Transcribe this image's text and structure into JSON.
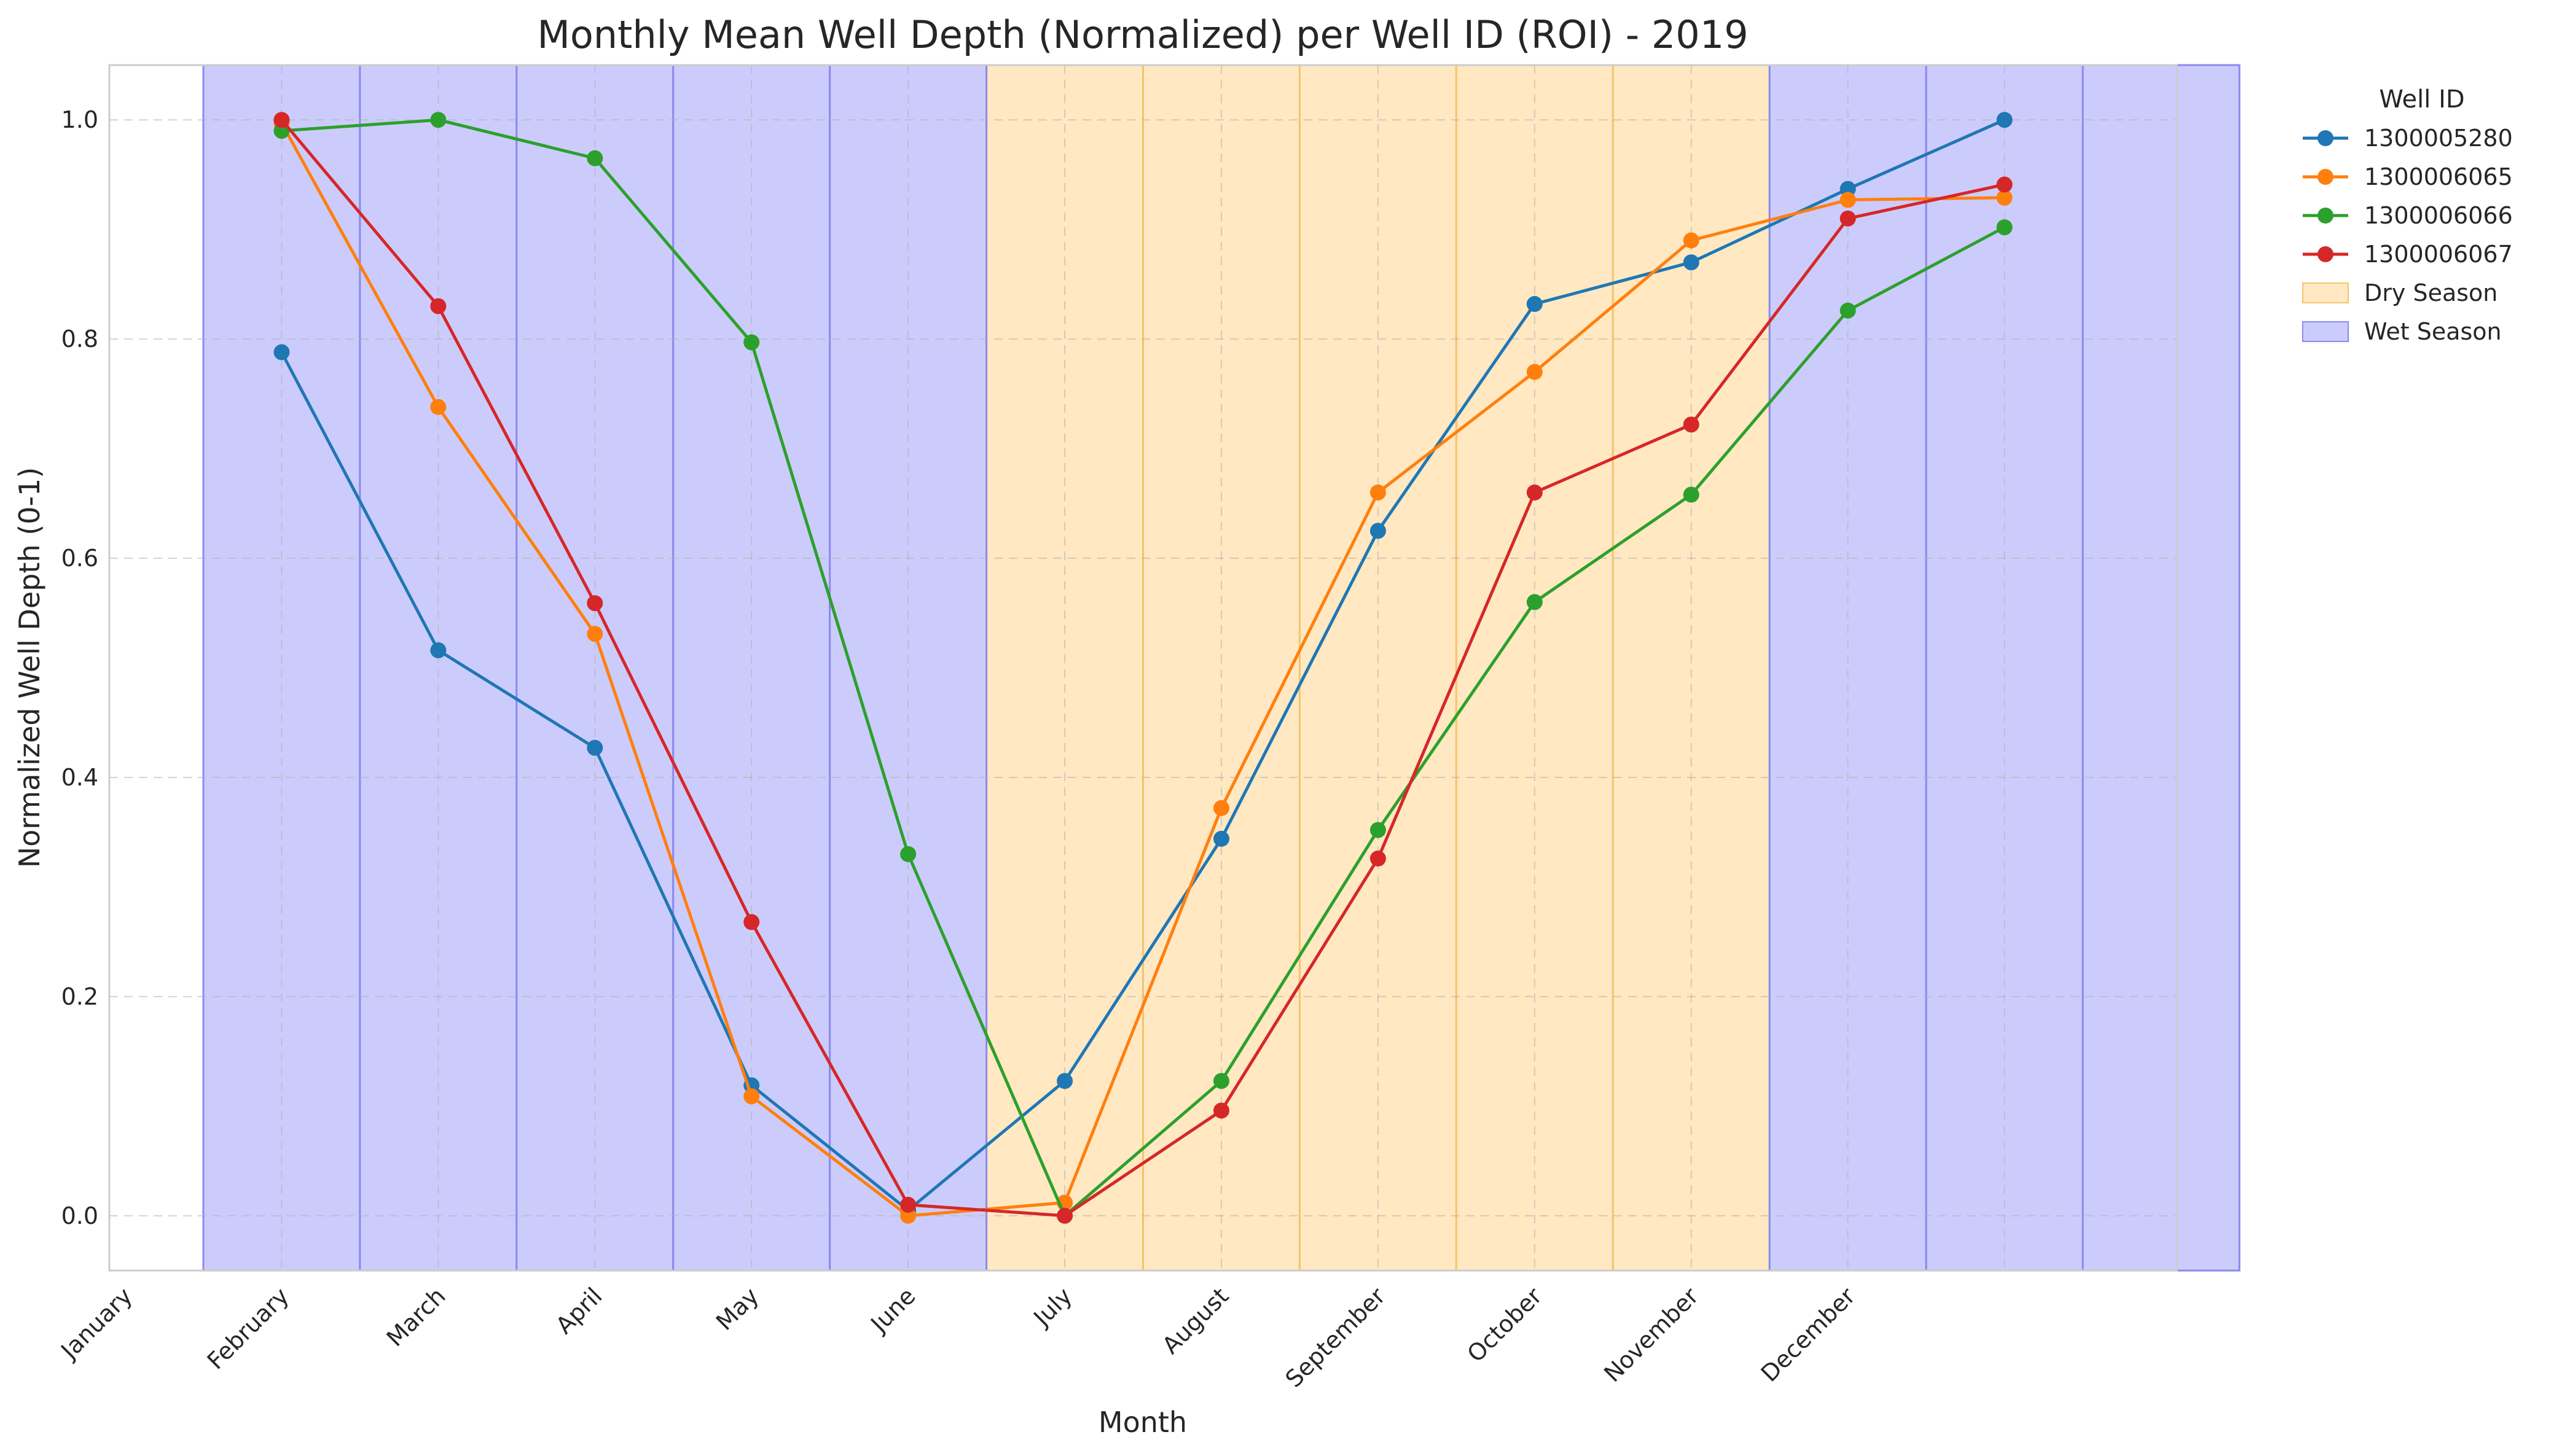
{
  "chart_data": {
    "type": "line",
    "title": "Monthly Mean Well Depth (Normalized) per Well ID (ROI) - 2019",
    "xlabel": "Month",
    "ylabel": "Normalized Well Depth (0-1)",
    "x_tick_labels": [
      "January",
      "February",
      "March",
      "April",
      "May",
      "June",
      "July",
      "August",
      "September",
      "October",
      "November",
      "December"
    ],
    "x_positions": [
      2,
      3,
      4,
      5,
      6,
      7,
      8,
      9,
      10,
      11,
      12,
      13
    ],
    "xlim": [
      0.9,
      14.1
    ],
    "y_ticks": [
      0.0,
      0.2,
      0.4,
      0.6,
      0.8,
      1.0
    ],
    "y_tick_labels": [
      "0.0",
      "0.2",
      "0.4",
      "0.6",
      "0.8",
      "1.0"
    ],
    "ylim": [
      -0.05,
      1.05
    ],
    "grid": true,
    "legend_title": "Well ID",
    "legend_placement": "outside-right",
    "series": [
      {
        "name": "1300005280",
        "color": "#1f77b4",
        "values": [
          0.788,
          0.516,
          0.427,
          0.119,
          0.005,
          0.123,
          0.344,
          0.625,
          0.832,
          0.87,
          0.937,
          1.0
        ]
      },
      {
        "name": "1300006065",
        "color": "#ff7f0e",
        "values": [
          0.997,
          0.738,
          0.531,
          0.109,
          0.0,
          0.012,
          0.372,
          0.66,
          0.77,
          0.89,
          0.927,
          0.929
        ]
      },
      {
        "name": "1300006066",
        "color": "#2ca02c",
        "values": [
          0.99,
          1.0,
          0.965,
          0.797,
          0.33,
          0.0,
          0.123,
          0.352,
          0.56,
          0.658,
          0.826,
          0.902
        ]
      },
      {
        "name": "1300006067",
        "color": "#d62728",
        "values": [
          1.0,
          0.83,
          0.559,
          0.268,
          0.01,
          0.0,
          0.096,
          0.326,
          0.66,
          0.722,
          0.91,
          0.941
        ]
      }
    ],
    "seasons": [
      {
        "name": "Dry Season",
        "color": "#ffe8c2",
        "edge_color": "#f5c46a",
        "spans": [
          [
            6.5,
            7.5
          ],
          [
            7.5,
            8.5
          ],
          [
            8.5,
            9.5
          ],
          [
            9.5,
            10.5
          ],
          [
            10.5,
            11.5
          ]
        ]
      },
      {
        "name": "Wet Season",
        "color": "#ccccfc",
        "edge_color": "#8a8aee",
        "spans": [
          [
            1.5,
            2.5
          ],
          [
            2.5,
            3.5
          ],
          [
            3.5,
            4.5
          ],
          [
            4.5,
            5.5
          ],
          [
            5.5,
            6.5
          ],
          [
            11.5,
            12.5
          ],
          [
            12.5,
            13.5
          ],
          [
            13.5,
            14.5
          ]
        ]
      }
    ]
  }
}
